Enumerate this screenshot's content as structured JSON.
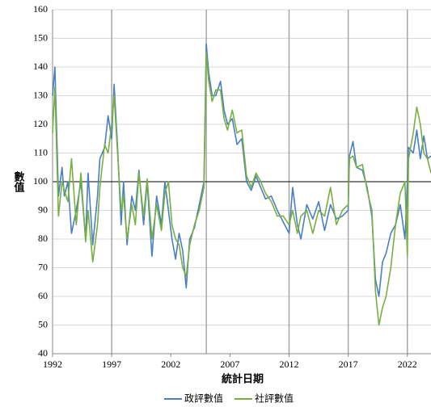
{
  "chart_data": {
    "type": "line",
    "xlabel": "統計日期",
    "ylabel": "數值",
    "x": [
      1992.0,
      1992.2,
      1992.5,
      1992.8,
      1993.0,
      1993.3,
      1993.6,
      1994.0,
      1994.4,
      1994.8,
      1995.0,
      1995.4,
      1995.8,
      1996.0,
      1996.4,
      1996.7,
      1997.0,
      1997.2,
      1997.5,
      1997.8,
      1998.0,
      1998.3,
      1998.7,
      1999.0,
      1999.3,
      1999.7,
      2000.0,
      2000.4,
      2000.8,
      2001.2,
      2001.5,
      2001.8,
      2002.1,
      2002.4,
      2002.7,
      2003.0,
      2003.3,
      2003.6,
      2004.0,
      2004.4,
      2004.8,
      2005.0,
      2005.2,
      2005.5,
      2005.8,
      2006.2,
      2006.5,
      2006.8,
      2007.2,
      2007.6,
      2008.0,
      2008.4,
      2008.8,
      2009.2,
      2009.6,
      2010.0,
      2010.5,
      2011.0,
      2011.5,
      2012.0,
      2012.3,
      2012.7,
      2013.0,
      2013.5,
      2014.0,
      2014.5,
      2015.0,
      2015.5,
      2016.0,
      2016.5,
      2017.0,
      2017.1,
      2017.4,
      2017.7,
      2018.2,
      2018.6,
      2019.0,
      2019.3,
      2019.6,
      2019.9,
      2020.2,
      2020.6,
      2021.0,
      2021.4,
      2021.8,
      2022.0,
      2022.1,
      2022.5,
      2022.8,
      2023.1,
      2023.4,
      2023.7,
      2024.0
    ],
    "series": [
      {
        "name": "政評數值",
        "color": "#4a7fc1",
        "values": [
          130,
          140,
          95,
          105,
          95,
          100,
          82,
          90,
          100,
          80,
          103,
          78,
          95,
          108,
          112,
          123,
          115,
          134,
          112,
          85,
          100,
          78,
          95,
          90,
          104,
          85,
          100,
          74,
          95,
          85,
          100,
          90,
          80,
          73,
          82,
          76,
          63,
          80,
          84,
          92,
          100,
          148,
          138,
          130,
          130,
          135,
          125,
          120,
          122,
          113,
          115,
          100,
          97,
          102,
          98,
          94,
          95,
          90,
          86,
          82,
          98,
          85,
          80,
          92,
          87,
          93,
          83,
          92,
          87,
          88,
          90,
          109,
          114,
          105,
          104,
          98,
          88,
          66,
          60,
          72,
          75,
          82,
          85,
          92,
          80,
          100,
          112,
          110,
          118,
          108,
          116,
          108,
          109
        ]
      },
      {
        "name": "社評數值",
        "color": "#77b041",
        "values": [
          117,
          133,
          88,
          100,
          97,
          93,
          108,
          85,
          103,
          79,
          90,
          72,
          85,
          98,
          113,
          110,
          120,
          130,
          110,
          90,
          95,
          80,
          92,
          85,
          103,
          88,
          101,
          80,
          92,
          83,
          96,
          100,
          85,
          80,
          78,
          70,
          67,
          78,
          85,
          90,
          98,
          145,
          135,
          128,
          132,
          132,
          122,
          118,
          125,
          117,
          118,
          102,
          98,
          103,
          100,
          96,
          93,
          88,
          88,
          85,
          90,
          82,
          88,
          90,
          82,
          90,
          88,
          98,
          85,
          90,
          92,
          108,
          109,
          105,
          106,
          97,
          90,
          62,
          50,
          56,
          60,
          70,
          85,
          96,
          100,
          74,
          108,
          117,
          126,
          120,
          110,
          108,
          103
        ]
      }
    ],
    "xlim": [
      1992,
      2024
    ],
    "xticks": [
      1992,
      1997,
      2002,
      2007,
      2012,
      2017,
      2022
    ],
    "ylim": [
      40,
      160
    ],
    "yticks": [
      40,
      50,
      60,
      70,
      80,
      90,
      100,
      110,
      120,
      130,
      140,
      150,
      160
    ],
    "grid": true,
    "reference_line": 100,
    "vlines": [
      1997,
      2005,
      2012,
      2017,
      2022
    ],
    "legend": "bottom"
  }
}
